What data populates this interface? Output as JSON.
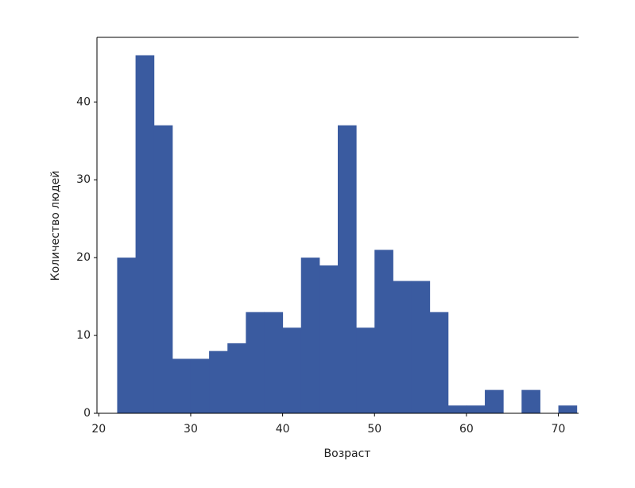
{
  "chart_data": {
    "type": "histogram",
    "xlabel": "Возраст",
    "ylabel": "Количество людей",
    "bins": [
      22,
      24,
      26,
      28,
      30,
      32,
      34,
      36,
      38,
      40,
      42,
      44,
      46,
      48,
      50,
      52,
      54,
      56,
      58,
      60,
      62,
      64,
      66,
      68,
      70,
      72
    ],
    "values": [
      20,
      46,
      37,
      7,
      7,
      8,
      9,
      13,
      13,
      11,
      20,
      19,
      37,
      11,
      21,
      17,
      17,
      13,
      1,
      1,
      3,
      0,
      3,
      0,
      1
    ],
    "color": "#3a5ba0",
    "xlim": [
      19.8,
      72.2
    ],
    "xticks": [
      20,
      30,
      40,
      50,
      60,
      70
    ],
    "ylim": [
      0,
      48.3
    ],
    "yticks": [
      0,
      10,
      20,
      30,
      40
    ]
  }
}
